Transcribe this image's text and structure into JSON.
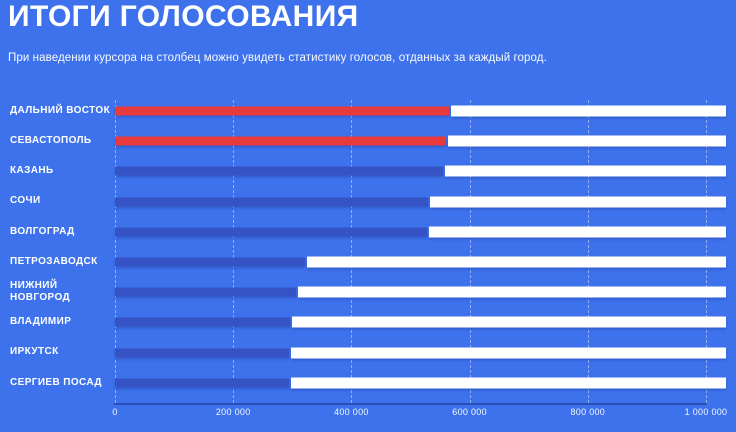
{
  "page": {
    "title": "ИТОГИ ГОЛОСОВАНИЯ",
    "subtitle": "При наведении курсора на столбец можно увидеть статистику голосов, отданных за каждый город."
  },
  "colors": {
    "background": "#3d72ec",
    "bar_red": "#e8393c",
    "bar_navy": "#3553c4",
    "bar_remainder": "#ffffff",
    "axis_line": "#2a51b5",
    "gridline": "rgba(255,255,255,0.45)",
    "text": "#ffffff"
  },
  "chart_data": {
    "type": "bar",
    "orientation": "horizontal",
    "title": "ИТОГИ ГОЛОСОВАНИЯ",
    "xlabel": "",
    "ylabel": "",
    "xlim": [
      0,
      1000000
    ],
    "grid": "vertical-dashed",
    "legend": "none",
    "x_tick_labels": [
      "0",
      "200 000",
      "400 000",
      "600 000",
      "800 000",
      "1 000 000"
    ],
    "x_tick_values": [
      0,
      200000,
      400000,
      600000,
      800000,
      1000000
    ],
    "categories": [
      "ДАЛЬНИЙ ВОСТОК",
      "СЕВАСТОПОЛЬ",
      "КАЗАНЬ",
      "СОЧИ",
      "ВОЛГОГРАД",
      "ПЕТРОЗАВОДСК",
      "НИЖНИЙ НОВГОРОД",
      "ВЛАДИМИР",
      "ИРКУТСК",
      "СЕРГИЕВ ПОСАД"
    ],
    "values": [
      546000,
      542000,
      537000,
      512000,
      511000,
      311000,
      297000,
      287000,
      285000,
      284000
    ],
    "bar_color_keys": [
      "red",
      "red",
      "navy",
      "navy",
      "navy",
      "navy",
      "navy",
      "navy",
      "navy",
      "navy"
    ],
    "remainder_to": 1000000
  }
}
